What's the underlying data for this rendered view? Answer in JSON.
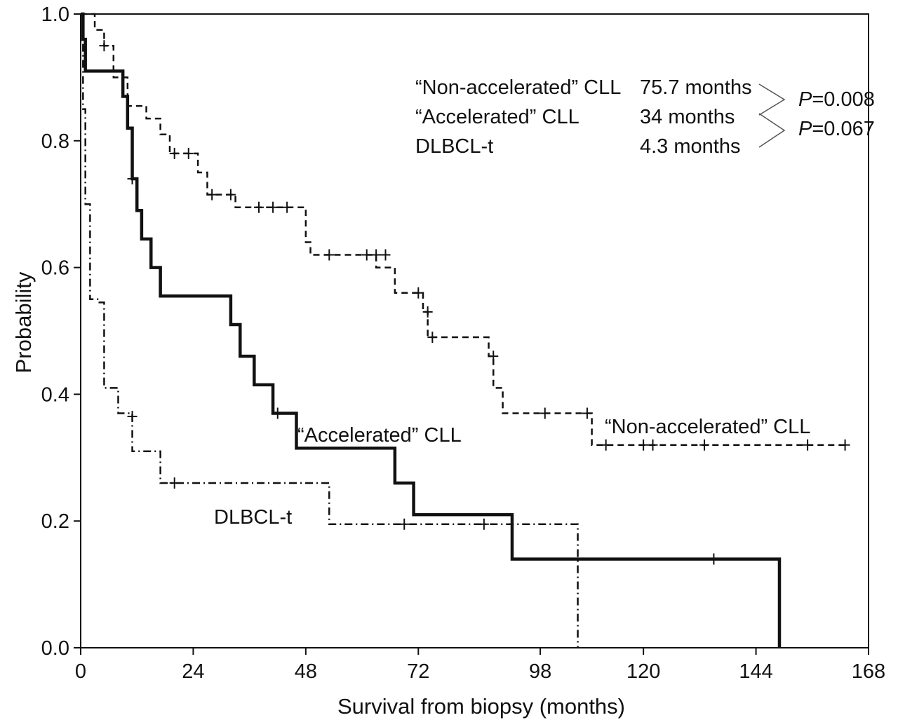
{
  "chart_data": {
    "type": "line",
    "subtype": "kaplan-meier",
    "xlabel": "Survival from biopsy (months)",
    "ylabel": "Probability",
    "xlim": [
      0,
      168
    ],
    "ylim": [
      0,
      1.0
    ],
    "x_ticks": [
      "0",
      "24",
      "48",
      "72",
      "98",
      "120",
      "144",
      "168"
    ],
    "y_ticks": [
      "0.0",
      "0.2",
      "0.4",
      "0.6",
      "0.8",
      "1.0"
    ],
    "legend": {
      "placement": "top-right",
      "rows": [
        {
          "name": "“Non-accelerated” CLL",
          "median": "75.7 months"
        },
        {
          "name": "“Accelerated” CLL",
          "median": "34 months"
        },
        {
          "name": "DLBCL-t",
          "median": "4.3 months"
        }
      ],
      "p_values": [
        {
          "label": "P",
          "value": "=0.008"
        },
        {
          "label": "P",
          "value": "=0.067"
        }
      ]
    },
    "series": [
      {
        "name": "“Non-accelerated” CLL",
        "style": "dashed",
        "steps": [
          [
            0,
            1.0
          ],
          [
            3,
            0.975
          ],
          [
            5,
            0.95
          ],
          [
            7,
            0.9
          ],
          [
            10,
            0.855
          ],
          [
            14,
            0.835
          ],
          [
            17,
            0.81
          ],
          [
            19,
            0.78
          ],
          [
            25,
            0.75
          ],
          [
            27,
            0.715
          ],
          [
            33,
            0.695
          ],
          [
            48,
            0.64
          ],
          [
            49,
            0.62
          ],
          [
            63,
            0.6
          ],
          [
            67,
            0.56
          ],
          [
            73,
            0.53
          ],
          [
            74,
            0.49
          ],
          [
            87,
            0.46
          ],
          [
            88,
            0.41
          ],
          [
            90,
            0.37
          ],
          [
            109,
            0.32
          ],
          [
            163,
            0.32
          ]
        ],
        "censored": [
          [
            5,
            0.95
          ],
          [
            20,
            0.78
          ],
          [
            23,
            0.78
          ],
          [
            28,
            0.715
          ],
          [
            32,
            0.715
          ],
          [
            38,
            0.695
          ],
          [
            41,
            0.695
          ],
          [
            44,
            0.695
          ],
          [
            53,
            0.62
          ],
          [
            61,
            0.62
          ],
          [
            63,
            0.62
          ],
          [
            65,
            0.62
          ],
          [
            72,
            0.56
          ],
          [
            74,
            0.53
          ],
          [
            75,
            0.49
          ],
          [
            88,
            0.46
          ],
          [
            99,
            0.37
          ],
          [
            108,
            0.37
          ],
          [
            112,
            0.32
          ],
          [
            120,
            0.32
          ],
          [
            122,
            0.32
          ],
          [
            133,
            0.32
          ],
          [
            155,
            0.32
          ],
          [
            163,
            0.32
          ]
        ],
        "label": "“Non-accelerated” CLL"
      },
      {
        "name": "“Accelerated” CLL",
        "style": "solid-bold",
        "steps": [
          [
            0,
            1.0
          ],
          [
            0.5,
            0.96
          ],
          [
            1,
            0.91
          ],
          [
            9,
            0.87
          ],
          [
            10,
            0.82
          ],
          [
            11,
            0.74
          ],
          [
            12,
            0.69
          ],
          [
            13,
            0.645
          ],
          [
            15,
            0.6
          ],
          [
            17,
            0.555
          ],
          [
            32,
            0.51
          ],
          [
            34,
            0.46
          ],
          [
            37,
            0.415
          ],
          [
            41,
            0.37
          ],
          [
            46,
            0.315
          ],
          [
            67,
            0.26
          ],
          [
            71,
            0.21
          ],
          [
            92,
            0.14
          ],
          [
            149,
            0.0
          ]
        ],
        "censored": [
          [
            11,
            0.74
          ],
          [
            42,
            0.37
          ],
          [
            135,
            0.14
          ]
        ],
        "label": "“Accelerated” CLL"
      },
      {
        "name": "DLBCL-t",
        "style": "dash-dot",
        "steps": [
          [
            0,
            1.0
          ],
          [
            0.5,
            0.85
          ],
          [
            1,
            0.7
          ],
          [
            2,
            0.55
          ],
          [
            4,
            0.545
          ],
          [
            5,
            0.41
          ],
          [
            8,
            0.37
          ],
          [
            11,
            0.31
          ],
          [
            17,
            0.26
          ],
          [
            53,
            0.195
          ],
          [
            106,
            0.0
          ]
        ],
        "censored": [
          [
            11,
            0.365
          ],
          [
            20,
            0.26
          ],
          [
            69,
            0.195
          ],
          [
            86,
            0.195
          ]
        ],
        "label": "DLBCL-t"
      }
    ]
  }
}
